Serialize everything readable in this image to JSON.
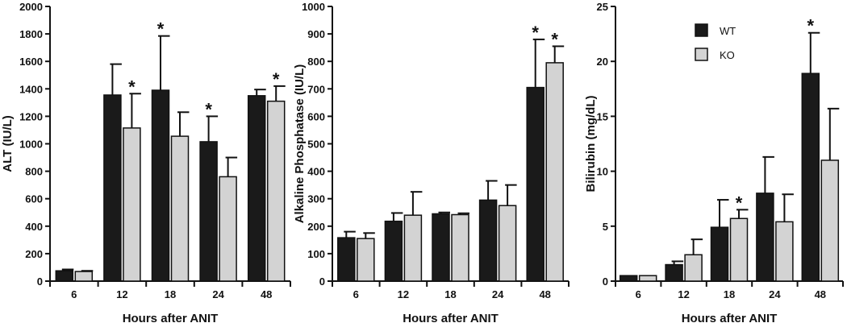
{
  "chart_data": [
    {
      "type": "bar",
      "xlabel": "Hours after ANIT",
      "ylabel": "ALT (IU/L)",
      "categories": [
        "6",
        "12",
        "18",
        "24",
        "48"
      ],
      "ylim": [
        0,
        2000
      ],
      "yticks": [
        "0",
        "200",
        "400",
        "600",
        "800",
        "1000",
        "1200",
        "1400",
        "1600",
        "1800",
        "2000"
      ],
      "series": [
        {
          "values": [
            75,
            1355,
            1390,
            1015,
            1350
          ],
          "errors": [
            10,
            225,
            395,
            185,
            45
          ],
          "stars": [
            false,
            false,
            true,
            true,
            false
          ]
        },
        {
          "values": [
            70,
            1115,
            1055,
            760,
            1310
          ],
          "errors": [
            5,
            250,
            175,
            140,
            110
          ],
          "stars": [
            false,
            true,
            false,
            false,
            true
          ]
        }
      ],
      "legend": null
    },
    {
      "type": "bar",
      "xlabel": "Hours after ANIT",
      "ylabel": "Alkaline Phosphatase (IU/L)",
      "categories": [
        "6",
        "12",
        "18",
        "24",
        "48"
      ],
      "ylim": [
        0,
        1000
      ],
      "yticks": [
        "0",
        "100",
        "200",
        "300",
        "400",
        "500",
        "600",
        "700",
        "800",
        "900",
        "1000"
      ],
      "series": [
        {
          "values": [
            158,
            218,
            245,
            295,
            705
          ],
          "errors": [
            22,
            30,
            5,
            70,
            175
          ],
          "stars": [
            false,
            false,
            false,
            false,
            true
          ]
        },
        {
          "values": [
            155,
            240,
            242,
            275,
            795
          ],
          "errors": [
            20,
            85,
            5,
            75,
            60
          ],
          "stars": [
            false,
            false,
            false,
            false,
            true
          ]
        }
      ],
      "legend": null
    },
    {
      "type": "bar",
      "xlabel": "Hours after ANIT",
      "ylabel": "Bilirubin (mg/dL)",
      "categories": [
        "6",
        "12",
        "18",
        "24",
        "48"
      ],
      "ylim": [
        0,
        25
      ],
      "yticks": [
        "0",
        "5",
        "10",
        "15",
        "20",
        "25"
      ],
      "series": [
        {
          "name": "WT",
          "values": [
            0.5,
            1.5,
            4.9,
            8.0,
            18.9
          ],
          "errors": [
            0.0,
            0.3,
            2.5,
            3.3,
            3.7
          ],
          "stars": [
            false,
            false,
            false,
            false,
            true
          ]
        },
        {
          "name": "KO",
          "values": [
            0.5,
            2.4,
            5.7,
            5.4,
            11.0
          ],
          "errors": [
            0.0,
            1.4,
            0.8,
            2.5,
            4.7
          ],
          "stars": [
            false,
            false,
            true,
            false,
            false
          ]
        }
      ],
      "legend": "top-center"
    }
  ],
  "colors": {
    "WT": "#1a1a1a",
    "KO": "#d3d3d3",
    "axis": "#111111"
  },
  "significance_marker": "*"
}
